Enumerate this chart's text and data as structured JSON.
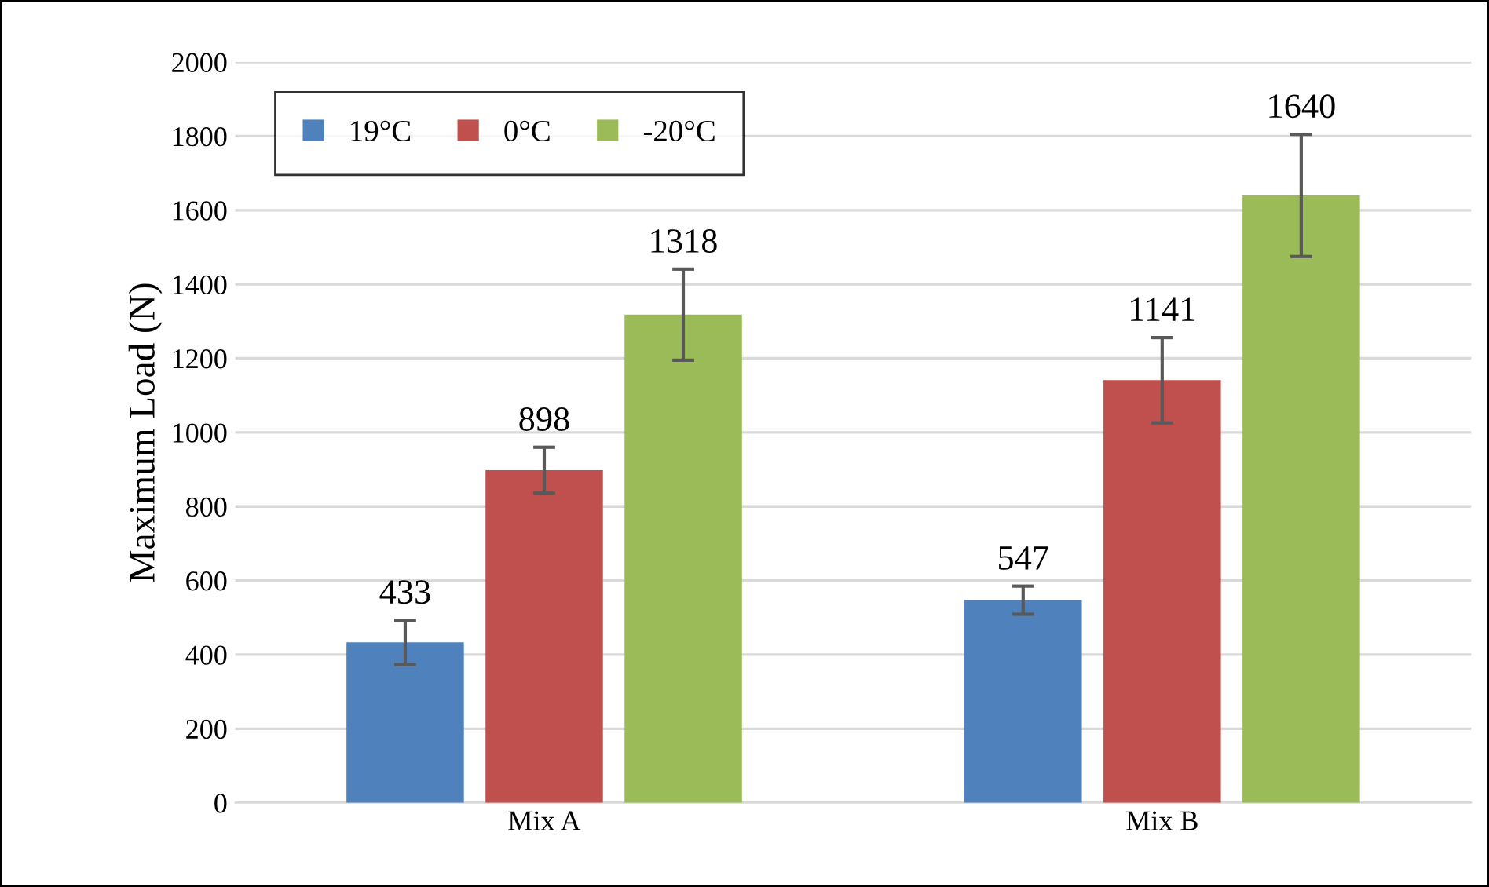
{
  "chart_data": {
    "type": "bar",
    "ylabel": "Maximum Load (N)",
    "categories": [
      "Mix A",
      "Mix B"
    ],
    "series": [
      {
        "name": "19°C",
        "color": "#4f81bd",
        "values": [
          433,
          547
        ],
        "errors": [
          60,
          38
        ]
      },
      {
        "name": "0°C",
        "color": "#c0504d",
        "values": [
          898,
          1141
        ],
        "errors": [
          62,
          115
        ]
      },
      {
        "name": "-20°C",
        "color": "#9bbb59",
        "values": [
          1318,
          1640
        ],
        "errors": [
          123,
          165
        ]
      }
    ],
    "ylim": [
      0,
      2000
    ],
    "yticks": [
      0,
      200,
      400,
      600,
      800,
      1000,
      1200,
      1400,
      1600,
      1800,
      2000
    ],
    "grid": "y",
    "legend": "top left",
    "data_labels": true
  }
}
